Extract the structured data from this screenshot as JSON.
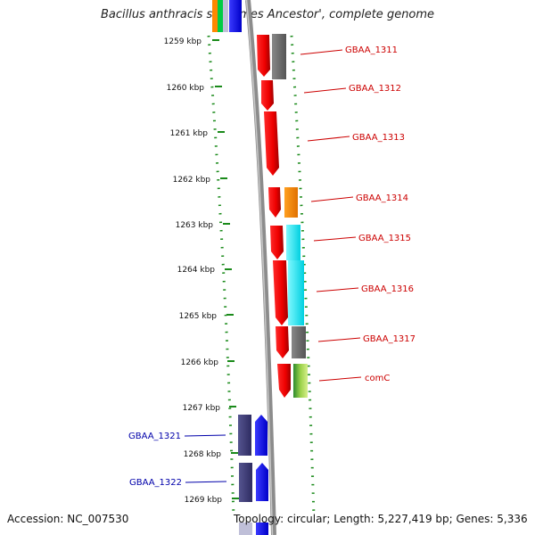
{
  "header": {
    "title": "Bacillus anthracis str. 'Ames Ancestor', complete genome"
  },
  "footer": {
    "accession": "Accession: NC_007530",
    "topology": "Topology: circular; Length: 5,227,419 bp; Genes: 5,336"
  },
  "ruler": [
    {
      "label": "1259 kbp"
    },
    {
      "label": "1260 kbp"
    },
    {
      "label": "1261 kbp"
    },
    {
      "label": "1262 kbp"
    },
    {
      "label": "1263 kbp"
    },
    {
      "label": "1264 kbp"
    },
    {
      "label": "1265 kbp"
    },
    {
      "label": "1266 kbp"
    },
    {
      "label": "1267 kbp"
    },
    {
      "label": "1268 kbp"
    },
    {
      "label": "1269 kbp"
    }
  ],
  "colors": {
    "forward_label": "#cc0000",
    "reverse_label": "#0000aa",
    "gene_red": "#ff0000",
    "gene_blue": "#0000ff",
    "gene_navy": "#3c3a78",
    "gene_gray": "#6b6b6b",
    "gene_orange": "#ff8800",
    "gene_cyan": "#00e5f0",
    "gene_green": "#7ac943",
    "dots": "#1a8a1a"
  },
  "genes": [
    {
      "label": "GBAA_1311",
      "strand": "forward"
    },
    {
      "label": "GBAA_1312",
      "strand": "forward"
    },
    {
      "label": "GBAA_1313",
      "strand": "forward"
    },
    {
      "label": "GBAA_1314",
      "strand": "forward"
    },
    {
      "label": "GBAA_1315",
      "strand": "forward"
    },
    {
      "label": "GBAA_1316",
      "strand": "forward"
    },
    {
      "label": "GBAA_1317",
      "strand": "forward"
    },
    {
      "label": "comC",
      "strand": "forward"
    },
    {
      "label": "GBAA_1321",
      "strand": "reverse"
    },
    {
      "label": "GBAA_1322",
      "strand": "reverse"
    }
  ]
}
